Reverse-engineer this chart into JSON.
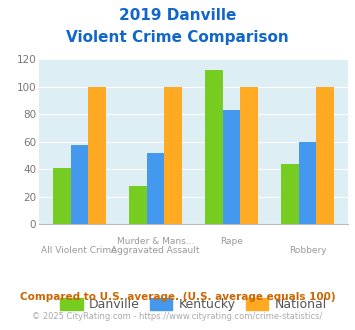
{
  "title_line1": "2019 Danville",
  "title_line2": "Violent Crime Comparison",
  "danville": [
    41,
    28,
    112,
    44
  ],
  "kentucky": [
    58,
    52,
    83,
    60
  ],
  "national": [
    100,
    100,
    100,
    100
  ],
  "danville_color": "#77cc22",
  "kentucky_color": "#4499ee",
  "national_color": "#ffaa22",
  "bg_color": "#ddeef4",
  "ylim": [
    0,
    120
  ],
  "yticks": [
    0,
    20,
    40,
    60,
    80,
    100,
    120
  ],
  "top_labels": [
    "",
    "Murder & Mans...",
    "Rape",
    ""
  ],
  "bottom_labels": [
    "All Violent Crime",
    "Aggravated Assault",
    "",
    "Robbery"
  ],
  "legend_labels": [
    "Danville",
    "Kentucky",
    "National"
  ],
  "footnote1": "Compared to U.S. average. (U.S. average equals 100)",
  "footnote2": "© 2025 CityRating.com - https://www.cityrating.com/crime-statistics/",
  "title_color": "#1166cc",
  "footnote1_color": "#cc6600",
  "footnote2_color": "#aaaaaa"
}
